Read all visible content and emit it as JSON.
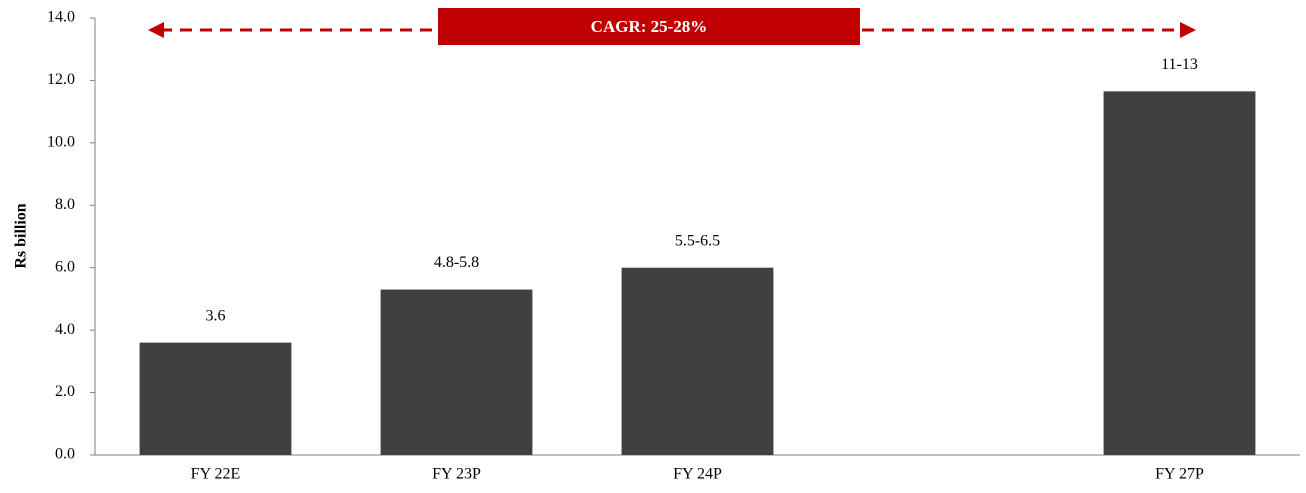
{
  "chart_data": {
    "type": "bar",
    "ylabel": "Rs billion",
    "annotation": "CAGR: 25-28%",
    "categories": [
      "FY 22E",
      "FY 23P",
      "FY 24P",
      null,
      "FY 27P"
    ],
    "values": [
      3.6,
      5.3,
      6.0,
      null,
      11.65
    ],
    "value_labels": [
      "3.6",
      "4.8-5.8",
      "5.5-6.5",
      null,
      "11-13"
    ],
    "color": "#404040",
    "annotation_color": "#c00000",
    "ylim": [
      0,
      14
    ],
    "yticks": [
      {
        "value": 0,
        "label": "0.0"
      },
      {
        "value": 2,
        "label": "2.0"
      },
      {
        "value": 4,
        "label": "4.0"
      },
      {
        "value": 6,
        "label": "6.0"
      },
      {
        "value": 8,
        "label": "8.0"
      },
      {
        "value": 10,
        "label": "10.0"
      },
      {
        "value": 12,
        "label": "12.0"
      },
      {
        "value": 14,
        "label": "14.0"
      }
    ],
    "grid": false
  }
}
